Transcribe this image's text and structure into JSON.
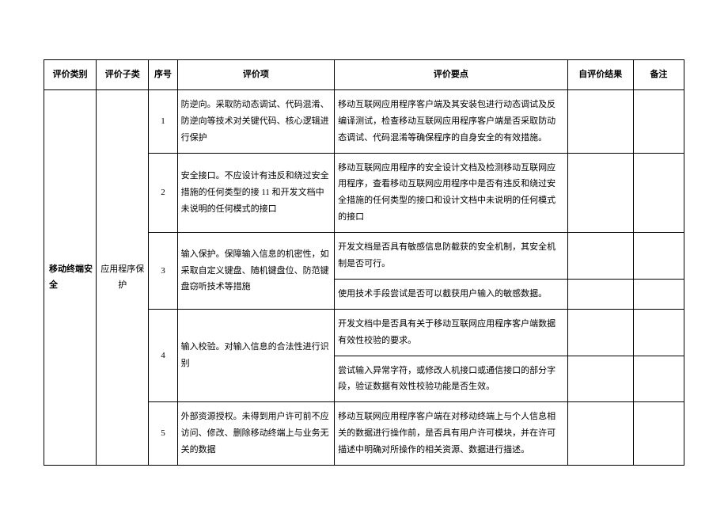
{
  "headers": {
    "category": "评价类别",
    "subcategory": "评价子类",
    "seq": "序号",
    "item": "评价项",
    "point": "评价要点",
    "result": "自评价结果",
    "remark": "备注"
  },
  "category": "移动终端安全",
  "subcategory": "应用程序保护",
  "rows": [
    {
      "seq": "1",
      "item": "防逆向。采取防动态调试、代码混淆、防逆向等技术对关键代码、核心逻辑进行保护",
      "point": "移动互联网应用程序客户端及其安装包进行动态调试及反编译测试，检查移动互联网应用程序客户端是否采取防动态调试、代码混淆等确保程序的自身安全的有效措施。"
    },
    {
      "seq": "2",
      "item": "安全接口。不应设计有违反和绕过安全措施的任何类型的接 11 和开发文档中未说明的任何模式的接口",
      "point": "移动互联网应用程序的安全设计文档及检测移动互联网应用程序，查看移动互联网应用程序中是否有违反和绕过安全措施的任何类型的接口和设计文档中未说明的任何模式的接口"
    },
    {
      "seq": "3",
      "item": "输入保护。保障输入信息的机密性，如采取自定义键盘、随机键盘位、防范键盘窃听技术等措施",
      "points": [
        "开发文档是否具有敏感信息防截获的安全机制，其安全机制是否可行。",
        "使用技术手段尝试是否可以截获用户输入的敏感数据。"
      ]
    },
    {
      "seq": "4",
      "item": "输入校验。对输入信息的合法性进行识别",
      "points": [
        "开发文档中是否具有关于移动互联网应用程序客户端数据有效性校验的要求。",
        "尝试输入异常字符，或修改人机接口或通信接口的部分字段，验证数据有效性校验功能是否生效。"
      ]
    },
    {
      "seq": "5",
      "item": "外部资源授权。未得到用户许可前不应访问、修改、删除移动终端上与业务无关的数据",
      "point": "移动互联网应用程序客户端在对移动终端上与个人信息相关的数据进行操作前，是否具有用户许可模块，并在许可描述中明确对所操作的相关资源、数据进行描述。"
    }
  ]
}
